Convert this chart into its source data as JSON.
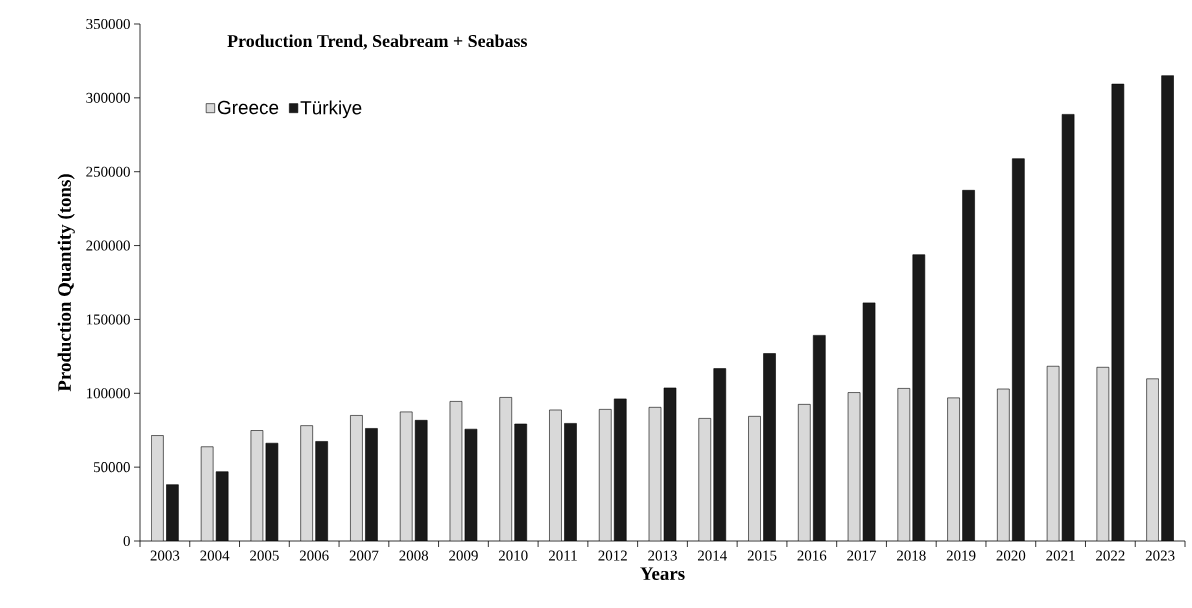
{
  "chart_data": {
    "type": "bar",
    "title": "Production Trend, Seabream + Seabass",
    "xlabel": "Years",
    "ylabel": "Production Quantity (tons)",
    "categories": [
      "2003",
      "2004",
      "2005",
      "2006",
      "2007",
      "2008",
      "2009",
      "2010",
      "2011",
      "2012",
      "2013",
      "2014",
      "2015",
      "2016",
      "2017",
      "2018",
      "2019",
      "2020",
      "2021",
      "2022",
      "2023"
    ],
    "series": [
      {
        "name": "Greece",
        "color": "#d9d9d9",
        "values": [
          71400,
          63800,
          74800,
          78100,
          85000,
          87400,
          94500,
          97200,
          88700,
          89100,
          90500,
          83000,
          84400,
          92500,
          100500,
          103300,
          96900,
          102900,
          118300,
          117600,
          109800
        ]
      },
      {
        "name": "Türkiye",
        "color": "#1a1a1a",
        "values": [
          38100,
          46900,
          66200,
          67400,
          76200,
          81700,
          75700,
          79200,
          79600,
          96200,
          103600,
          116700,
          126900,
          139200,
          161200,
          193800,
          237400,
          258800,
          288800,
          309300,
          315000
        ]
      }
    ],
    "ylim": [
      0,
      350000
    ],
    "yticks": [
      0,
      50000,
      100000,
      150000,
      200000,
      250000,
      300000,
      350000
    ],
    "grid": false,
    "legend": "top left"
  }
}
